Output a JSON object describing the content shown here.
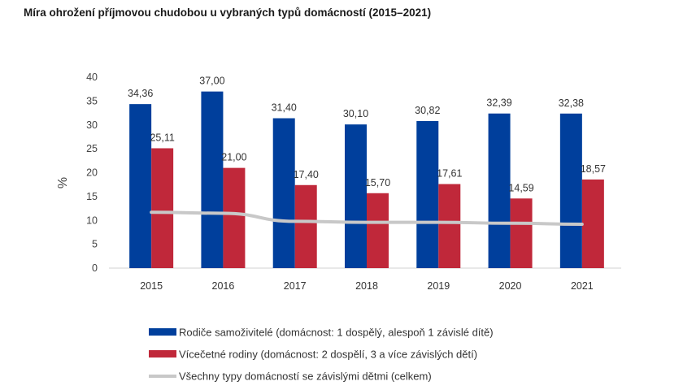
{
  "title": "Míra ohrožení příjmovou chudobou u vybraných typů domácností (2015–2021)",
  "chart_data": {
    "type": "bar",
    "title": "Míra ohrožení příjmovou chudobou u vybraných typů domácností (2015–2021)",
    "ylabel": "%",
    "xlabel": "",
    "ylim": [
      0,
      40
    ],
    "yticks": [
      "0",
      "5",
      "10",
      "15",
      "20",
      "25",
      "30",
      "35",
      "40"
    ],
    "grid": false,
    "legend_position": "bottom",
    "categories": [
      "2015",
      "2016",
      "2017",
      "2018",
      "2019",
      "2020",
      "2021"
    ],
    "series": [
      {
        "name": "Rodiče samoživitelé (domácnost: 1 dospělý, alespoň 1 závislé dítě)",
        "kind": "bar",
        "color": "#003f9c",
        "values": [
          34.36,
          37.0,
          31.4,
          30.1,
          30.82,
          32.39,
          32.38
        ],
        "labels": [
          "34,36",
          "37,00",
          "31,40",
          "30,10",
          "30,82",
          "32,39",
          "32,38"
        ]
      },
      {
        "name": "Vícečetné rodiny (domácnost: 2 dospělí, 3 a více závislých dětí)",
        "kind": "bar",
        "color": "#c0283a",
        "values": [
          25.11,
          21.0,
          17.4,
          15.7,
          17.61,
          14.59,
          18.57
        ],
        "labels": [
          "25,11",
          "21,00",
          "17,40",
          "15,70",
          "17,61",
          "14,59",
          "18,57"
        ]
      },
      {
        "name": "Všechny typy domácností se závislými dětmi (celkem)",
        "kind": "line",
        "color": "#c8c8c8",
        "values": [
          11.7,
          11.5,
          9.8,
          9.6,
          9.6,
          9.4,
          9.2
        ]
      }
    ]
  }
}
